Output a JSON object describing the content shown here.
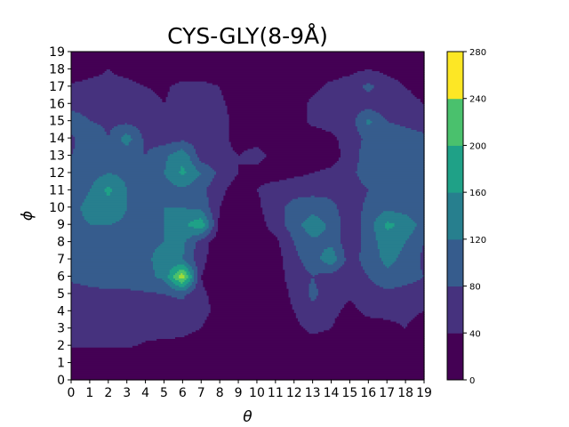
{
  "chart_data": {
    "type": "heatmap",
    "subtype": "filled-contour",
    "title": "CYS-GLY(8-9Å)",
    "xlabel": "θ",
    "ylabel": "ϕ",
    "x_ticks": [
      "0",
      "1",
      "2",
      "3",
      "4",
      "5",
      "6",
      "7",
      "8",
      "9",
      "10",
      "11",
      "12",
      "13",
      "14",
      "15",
      "16",
      "17",
      "18",
      "19"
    ],
    "y_ticks": [
      "0",
      "1",
      "2",
      "3",
      "4",
      "5",
      "6",
      "7",
      "8",
      "9",
      "10",
      "11",
      "12",
      "13",
      "14",
      "15",
      "16",
      "17",
      "18",
      "19"
    ],
    "xlim": [
      0,
      19
    ],
    "ylim": [
      0,
      19
    ],
    "colorbar": {
      "levels": [
        0,
        40,
        80,
        120,
        160,
        200,
        240,
        280
      ],
      "tick_labels": [
        "0",
        "40",
        "80",
        "120",
        "160",
        "200",
        "240",
        "280"
      ],
      "colors": [
        "#440154",
        "#46327e",
        "#365c8d",
        "#277f8e",
        "#1fa187",
        "#4ac16d",
        "#a0da39",
        "#fde725"
      ]
    },
    "grid": false,
    "z": [
      [
        10,
        10,
        10,
        10,
        10,
        10,
        10,
        10,
        10,
        10,
        10,
        10,
        10,
        10,
        10,
        10,
        10,
        10,
        10,
        10
      ],
      [
        10,
        10,
        10,
        10,
        10,
        10,
        10,
        10,
        10,
        10,
        10,
        10,
        10,
        10,
        10,
        10,
        10,
        10,
        10,
        10
      ],
      [
        45,
        45,
        45,
        45,
        35,
        30,
        30,
        20,
        15,
        12,
        12,
        12,
        15,
        20,
        15,
        10,
        10,
        10,
        10,
        10
      ],
      [
        50,
        55,
        55,
        55,
        55,
        55,
        50,
        40,
        20,
        12,
        12,
        12,
        30,
        50,
        40,
        15,
        20,
        30,
        40,
        20
      ],
      [
        50,
        55,
        55,
        60,
        60,
        60,
        60,
        50,
        30,
        15,
        12,
        15,
        40,
        70,
        50,
        30,
        50,
        50,
        50,
        40
      ],
      [
        60,
        65,
        70,
        70,
        75,
        80,
        90,
        45,
        30,
        15,
        12,
        15,
        50,
        90,
        60,
        45,
        60,
        70,
        60,
        50
      ],
      [
        90,
        100,
        105,
        105,
        110,
        130,
        270,
        40,
        15,
        10,
        10,
        20,
        60,
        80,
        60,
        50,
        80,
        110,
        100,
        80
      ],
      [
        100,
        110,
        115,
        115,
        115,
        130,
        120,
        50,
        15,
        10,
        10,
        20,
        70,
        100,
        150,
        60,
        100,
        130,
        110,
        70
      ],
      [
        105,
        115,
        115,
        115,
        115,
        120,
        130,
        60,
        15,
        10,
        12,
        30,
        80,
        110,
        110,
        50,
        100,
        140,
        120,
        80
      ],
      [
        110,
        120,
        120,
        115,
        115,
        120,
        150,
        190,
        30,
        12,
        20,
        60,
        100,
        150,
        110,
        50,
        100,
        170,
        150,
        100
      ],
      [
        110,
        130,
        140,
        120,
        100,
        120,
        120,
        110,
        40,
        15,
        30,
        70,
        90,
        100,
        90,
        60,
        90,
        110,
        100,
        80
      ],
      [
        100,
        120,
        170,
        120,
        100,
        100,
        110,
        90,
        50,
        20,
        40,
        60,
        70,
        70,
        70,
        60,
        80,
        100,
        100,
        90
      ],
      [
        80,
        100,
        120,
        110,
        90,
        120,
        170,
        120,
        70,
        40,
        30,
        20,
        30,
        40,
        50,
        70,
        100,
        110,
        110,
        90
      ],
      [
        80,
        90,
        100,
        90,
        80,
        110,
        150,
        60,
        50,
        40,
        50,
        30,
        20,
        15,
        20,
        60,
        100,
        120,
        120,
        100
      ],
      [
        70,
        120,
        80,
        140,
        70,
        60,
        70,
        60,
        50,
        30,
        30,
        30,
        20,
        15,
        30,
        60,
        90,
        100,
        100,
        90
      ],
      [
        110,
        80,
        70,
        70,
        60,
        50,
        50,
        50,
        50,
        30,
        20,
        20,
        20,
        50,
        60,
        60,
        130,
        80,
        70,
        60
      ],
      [
        60,
        60,
        60,
        60,
        50,
        40,
        50,
        50,
        45,
        30,
        20,
        15,
        15,
        50,
        60,
        60,
        60,
        50,
        50,
        40
      ],
      [
        45,
        50,
        50,
        50,
        40,
        35,
        50,
        50,
        40,
        25,
        15,
        10,
        12,
        30,
        50,
        60,
        90,
        60,
        40,
        30
      ],
      [
        20,
        30,
        40,
        30,
        20,
        20,
        20,
        20,
        15,
        12,
        10,
        10,
        10,
        15,
        20,
        30,
        40,
        30,
        20,
        15
      ],
      [
        10,
        10,
        10,
        10,
        10,
        10,
        10,
        10,
        10,
        10,
        10,
        10,
        10,
        10,
        10,
        10,
        10,
        10,
        10,
        10
      ]
    ]
  }
}
